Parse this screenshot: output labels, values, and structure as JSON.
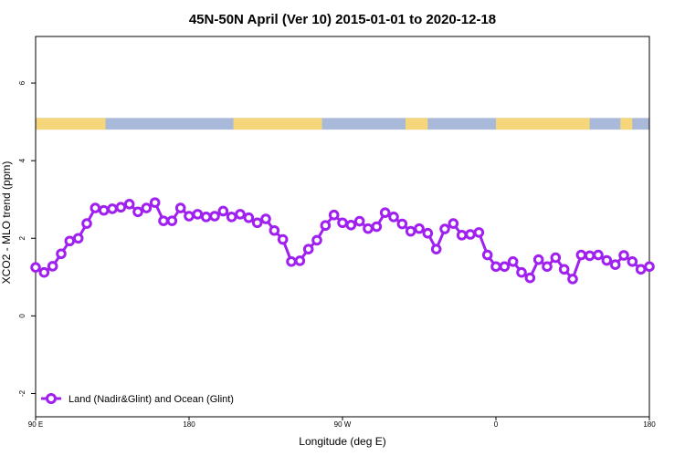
{
  "colors": {
    "series": "#a020f0",
    "land": "#f5d67a",
    "ocean": "#a9b9d9",
    "axis": "#000000"
  },
  "chart_data": {
    "type": "line",
    "title": "45N-50N April (Ver 10)   2015-01-01 to 2020-12-18",
    "xlabel": "Longitude (deg E)",
    "ylabel": "XCO2 - MLO trend (ppm)",
    "xlim": [
      90,
      450
    ],
    "ylim": [
      -2.6,
      7.2
    ],
    "x_ticks": [
      {
        "value": 90,
        "label": "90 E"
      },
      {
        "value": 180,
        "label": "180"
      },
      {
        "value": 270,
        "label": "90 W"
      },
      {
        "value": 360,
        "label": "0"
      },
      {
        "value": 450,
        "label": "180"
      }
    ],
    "x_ticks_extra": [
      {
        "value": 90,
        "label": "90 E"
      }
    ],
    "y_ticks": [
      {
        "value": -2,
        "label": "-2"
      },
      {
        "value": 0,
        "label": "0"
      },
      {
        "value": 2,
        "label": "2"
      },
      {
        "value": 4,
        "label": "4"
      },
      {
        "value": 6,
        "label": "6"
      }
    ],
    "land_ocean_band": {
      "y_range": [
        4.8,
        5.1
      ],
      "land_segments": [
        [
          90,
          131
        ],
        [
          206,
          258
        ],
        [
          307,
          320
        ],
        [
          360,
          415
        ],
        [
          433,
          440
        ]
      ]
    },
    "legend": {
      "position": "bottom-left"
    },
    "series": [
      {
        "name": "Land (Nadir&Glint) and Ocean (Glint)",
        "x": [
          90,
          95,
          100,
          105,
          110,
          115,
          120,
          125,
          130,
          135,
          140,
          145,
          150,
          155,
          160,
          165,
          170,
          175,
          180,
          185,
          190,
          195,
          200,
          205,
          210,
          215,
          220,
          225,
          230,
          235,
          240,
          245,
          250,
          255,
          260,
          265,
          270,
          275,
          280,
          285,
          290,
          295,
          300,
          305,
          310,
          315,
          320,
          325,
          330,
          335,
          340,
          345,
          350,
          355,
          360,
          365,
          370,
          375,
          380,
          385,
          390,
          395,
          400,
          405,
          410,
          415,
          420,
          425,
          430,
          435,
          440,
          445,
          450
        ],
        "y": [
          1.25,
          1.12,
          1.28,
          1.6,
          1.93,
          2.0,
          2.38,
          2.78,
          2.72,
          2.76,
          2.8,
          2.88,
          2.68,
          2.78,
          2.92,
          2.45,
          2.45,
          2.78,
          2.57,
          2.62,
          2.55,
          2.57,
          2.7,
          2.55,
          2.62,
          2.53,
          2.4,
          2.5,
          2.2,
          1.97,
          1.4,
          1.42,
          1.72,
          1.95,
          2.33,
          2.6,
          2.4,
          2.34,
          2.44,
          2.25,
          2.3,
          2.66,
          2.55,
          2.37,
          2.18,
          2.25,
          2.13,
          1.72,
          2.24,
          2.38,
          2.08,
          2.1,
          2.15,
          1.57,
          1.27,
          1.27,
          1.4,
          1.12,
          0.98,
          1.45,
          1.27,
          1.5,
          1.2,
          0.95,
          1.57,
          1.55,
          1.57,
          1.43,
          1.32,
          1.56,
          1.4,
          1.2,
          1.27
        ]
      }
    ]
  }
}
